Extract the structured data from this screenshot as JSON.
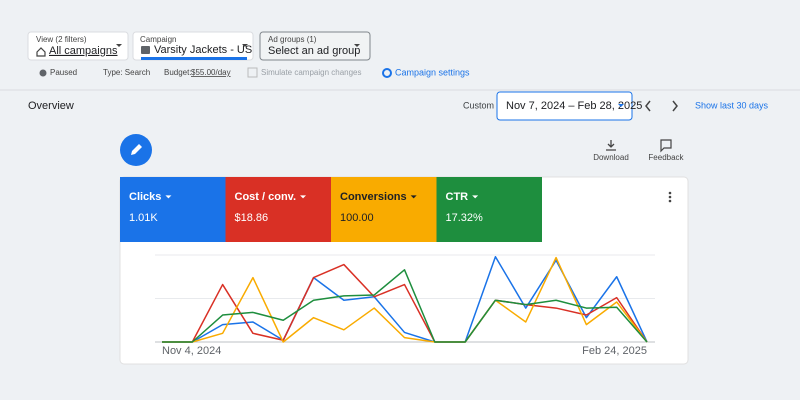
{
  "filters": [
    {
      "label": "View (2 filters)",
      "value": "All campaigns"
    },
    {
      "label": "Campaign",
      "value": "Varsity Jackets - US"
    },
    {
      "label": "Ad groups (1)",
      "value": "Select an ad group"
    }
  ],
  "status": {
    "state": "Paused",
    "type": "Type: Search",
    "budget_label": "Budget:",
    "budget": "$55.00/day",
    "simulate": "Simulate campaign changes",
    "settings": "Campaign settings"
  },
  "overview": {
    "title": "Overview",
    "range_label": "Custom",
    "date_range": "Nov 7, 2024 – Feb 28, 2025",
    "quick_range": "Show last 30 days",
    "download": "Download",
    "feedback": "Feedback"
  },
  "chart_data": {
    "type": "line",
    "categories": [
      "Nov 4, 2024",
      null,
      null,
      null,
      null,
      null,
      null,
      null,
      null,
      null,
      null,
      null,
      null,
      null,
      null,
      null,
      "Feb 24, 2025"
    ],
    "series": [
      {
        "name": "Clicks",
        "summary": "1.01K",
        "color": "#1a73e8",
        "values": [
          0,
          0,
          20,
          23,
          2,
          74,
          48,
          52,
          11,
          0,
          0,
          98,
          39,
          94,
          28,
          75,
          0
        ]
      },
      {
        "name": "Cost / conv.",
        "summary": "$18.86",
        "color": "#d93025",
        "values": [
          0,
          0,
          66,
          10,
          2,
          74,
          89,
          52,
          66,
          0,
          0,
          48,
          43,
          39,
          31,
          51,
          0
        ]
      },
      {
        "name": "Conversions",
        "summary": "100.00",
        "color": "#f9ab00",
        "values": [
          0,
          0,
          10,
          74,
          0,
          28,
          14,
          39,
          5,
          0,
          0,
          48,
          23,
          97,
          20,
          46,
          0
        ]
      },
      {
        "name": "CTR",
        "summary": "17.32%",
        "color": "#1e8e3e",
        "values": [
          0,
          0,
          31,
          34,
          25,
          48,
          53,
          54,
          83,
          0,
          0,
          48,
          43,
          48,
          39,
          40,
          0
        ]
      }
    ],
    "ylim": [
      0,
      100
    ],
    "yticks": [
      0,
      50,
      100
    ],
    "grid": true
  }
}
